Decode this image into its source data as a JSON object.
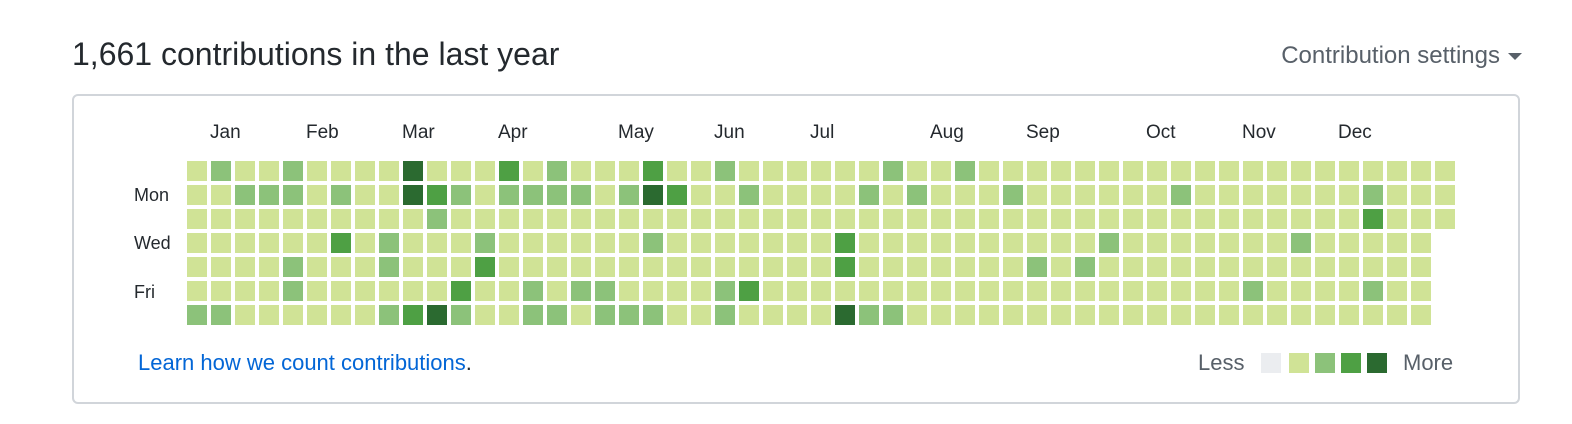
{
  "header": {
    "title": "1,661 contributions in the last year",
    "settings_label": "Contribution settings"
  },
  "months": [
    "Jan",
    "Feb",
    "Mar",
    "Apr",
    "May",
    "Jun",
    "Jul",
    "Aug",
    "Sep",
    "Oct",
    "Nov",
    "Dec"
  ],
  "day_labels": [
    "Mon",
    "Wed",
    "Fri"
  ],
  "footer": {
    "learn_link": "Learn how we count contributions",
    "period": ".",
    "less": "Less",
    "more": "More"
  },
  "colors": {
    "level0": "#ebedf0",
    "level1": "#d0e396",
    "level2": "#8cc27a",
    "level3": "#4ea044",
    "level4": "#2b6a30"
  },
  "grid": {
    "weeks": 53,
    "overrides": [
      [
        1,
        0,
        2
      ],
      [
        4,
        0,
        2
      ],
      [
        9,
        0,
        4
      ],
      [
        13,
        0,
        3
      ],
      [
        15,
        0,
        2
      ],
      [
        19,
        0,
        3
      ],
      [
        22,
        0,
        2
      ],
      [
        29,
        0,
        2
      ],
      [
        32,
        0,
        2
      ],
      [
        2,
        1,
        2
      ],
      [
        3,
        1,
        2
      ],
      [
        4,
        1,
        2
      ],
      [
        6,
        1,
        2
      ],
      [
        9,
        1,
        4
      ],
      [
        10,
        1,
        3
      ],
      [
        11,
        1,
        2
      ],
      [
        13,
        1,
        2
      ],
      [
        14,
        1,
        2
      ],
      [
        15,
        1,
        2
      ],
      [
        16,
        1,
        2
      ],
      [
        18,
        1,
        2
      ],
      [
        19,
        1,
        4
      ],
      [
        20,
        1,
        3
      ],
      [
        23,
        1,
        2
      ],
      [
        28,
        1,
        2
      ],
      [
        30,
        1,
        2
      ],
      [
        34,
        1,
        2
      ],
      [
        41,
        1,
        2
      ],
      [
        49,
        1,
        2
      ],
      [
        10,
        2,
        2
      ],
      [
        49,
        2,
        3
      ],
      [
        6,
        3,
        3
      ],
      [
        8,
        3,
        2
      ],
      [
        12,
        3,
        2
      ],
      [
        19,
        3,
        2
      ],
      [
        27,
        3,
        3
      ],
      [
        38,
        3,
        2
      ],
      [
        46,
        3,
        2
      ],
      [
        4,
        4,
        2
      ],
      [
        8,
        4,
        2
      ],
      [
        12,
        4,
        3
      ],
      [
        27,
        4,
        3
      ],
      [
        35,
        4,
        2
      ],
      [
        37,
        4,
        2
      ],
      [
        4,
        5,
        2
      ],
      [
        11,
        5,
        3
      ],
      [
        14,
        5,
        2
      ],
      [
        16,
        5,
        2
      ],
      [
        17,
        5,
        2
      ],
      [
        22,
        5,
        2
      ],
      [
        23,
        5,
        3
      ],
      [
        44,
        5,
        2
      ],
      [
        49,
        5,
        2
      ],
      [
        0,
        6,
        2
      ],
      [
        1,
        6,
        2
      ],
      [
        8,
        6,
        2
      ],
      [
        9,
        6,
        3
      ],
      [
        10,
        6,
        4
      ],
      [
        11,
        6,
        2
      ],
      [
        14,
        6,
        2
      ],
      [
        15,
        6,
        2
      ],
      [
        17,
        6,
        2
      ],
      [
        18,
        6,
        2
      ],
      [
        19,
        6,
        2
      ],
      [
        22,
        6,
        2
      ],
      [
        27,
        6,
        4
      ],
      [
        28,
        6,
        2
      ],
      [
        29,
        6,
        2
      ]
    ]
  }
}
